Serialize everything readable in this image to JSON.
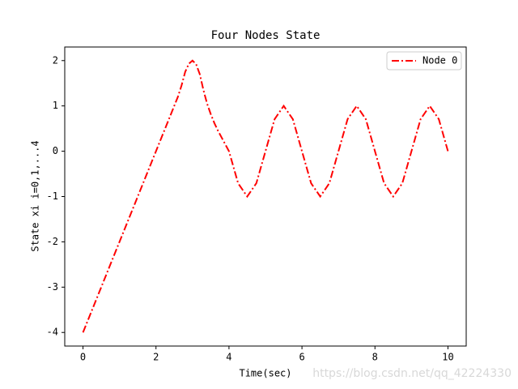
{
  "chart_data": {
    "type": "line",
    "title": "Four Nodes State",
    "x_label": "Time(sec)",
    "y_label": "State xi i=0,1,...4",
    "x": [
      0,
      2.5,
      2.6,
      2.7,
      2.8,
      2.9,
      3.0,
      3.1,
      3.2,
      3.3,
      3.4,
      3.5,
      3.6,
      3.7,
      3.8,
      3.9,
      4.0,
      4.25,
      4.5,
      4.75,
      5.0,
      5.25,
      5.5,
      5.75,
      6.0,
      6.25,
      6.5,
      6.75,
      7.0,
      7.25,
      7.5,
      7.75,
      8.0,
      8.25,
      8.5,
      8.75,
      9.0,
      9.25,
      9.5,
      9.75,
      10.0
    ],
    "series": [
      {
        "name": "Node 0",
        "color": "#ff0000",
        "values": [
          -4,
          1.0,
          1.2,
          1.45,
          1.75,
          1.93,
          2.0,
          1.92,
          1.7,
          1.35,
          1.05,
          0.82,
          0.62,
          0.45,
          0.3,
          0.15,
          0,
          -0.707,
          -1,
          -0.707,
          0,
          0.707,
          1,
          0.707,
          0,
          -0.707,
          -1,
          -0.707,
          0,
          0.707,
          1,
          0.707,
          0,
          -0.707,
          -1,
          -0.707,
          0,
          0.707,
          1,
          0.707,
          0
        ]
      }
    ],
    "xlim": [
      -0.5,
      10.5
    ],
    "ylim": [
      -4.3,
      2.3
    ],
    "xticks": [
      0,
      2,
      4,
      6,
      8,
      10
    ],
    "yticks": [
      -4,
      -3,
      -2,
      -1,
      0,
      1,
      2
    ],
    "legend": "upper right",
    "watermark": "https://blog.csdn.net/qq_42224330"
  }
}
